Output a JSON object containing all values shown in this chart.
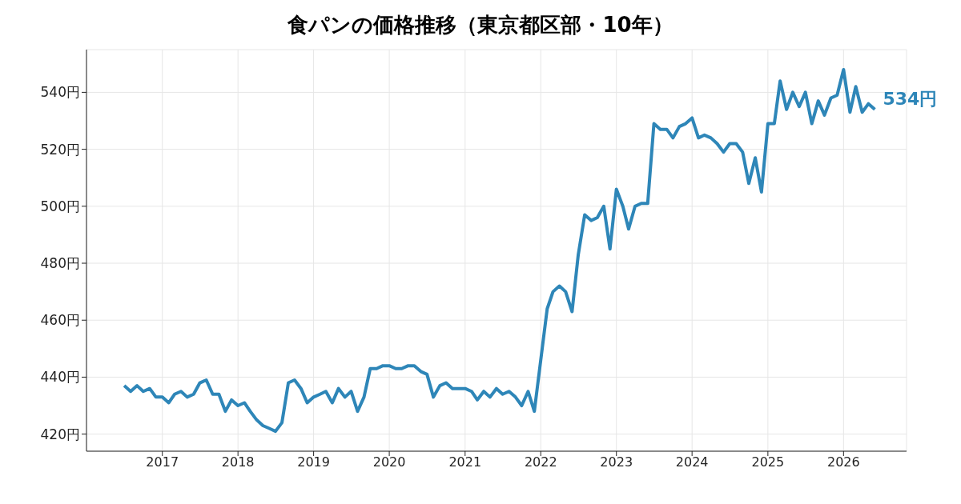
{
  "chart_data": {
    "type": "line",
    "title": "食パンの価格推移（東京都区部・10年）",
    "x": [
      "2016-07",
      "2016-08",
      "2016-09",
      "2016-10",
      "2016-11",
      "2016-12",
      "2017-01",
      "2017-02",
      "2017-03",
      "2017-04",
      "2017-05",
      "2017-06",
      "2017-07",
      "2017-08",
      "2017-09",
      "2017-10",
      "2017-11",
      "2017-12",
      "2018-01",
      "2018-02",
      "2018-03",
      "2018-04",
      "2018-05",
      "2018-06",
      "2018-07",
      "2018-08",
      "2018-09",
      "2018-10",
      "2018-11",
      "2018-12",
      "2019-01",
      "2019-02",
      "2019-03",
      "2019-04",
      "2019-05",
      "2019-06",
      "2019-07",
      "2019-08",
      "2019-09",
      "2019-10",
      "2019-11",
      "2019-12",
      "2020-01",
      "2020-02",
      "2020-03",
      "2020-04",
      "2020-05",
      "2020-06",
      "2020-07",
      "2020-08",
      "2020-09",
      "2020-10",
      "2020-11",
      "2020-12",
      "2021-01",
      "2021-02",
      "2021-03",
      "2021-04",
      "2021-05",
      "2021-06",
      "2021-07",
      "2021-08",
      "2021-09",
      "2021-10",
      "2021-11",
      "2021-12",
      "2022-01",
      "2022-02",
      "2022-03",
      "2022-04",
      "2022-05",
      "2022-06",
      "2022-07",
      "2022-08",
      "2022-09",
      "2022-10",
      "2022-11",
      "2022-12",
      "2023-01",
      "2023-02",
      "2023-03",
      "2023-04",
      "2023-05",
      "2023-06",
      "2023-07",
      "2023-08",
      "2023-09",
      "2023-10",
      "2023-11",
      "2023-12",
      "2024-01",
      "2024-02",
      "2024-03",
      "2024-04",
      "2024-05",
      "2024-06",
      "2024-07",
      "2024-08",
      "2024-09",
      "2024-10",
      "2024-11",
      "2024-12",
      "2025-01",
      "2025-02",
      "2025-03",
      "2025-04",
      "2025-05",
      "2025-06",
      "2025-07",
      "2025-08",
      "2025-09",
      "2025-10",
      "2025-11",
      "2025-12",
      "2026-01",
      "2026-02",
      "2026-03",
      "2026-04",
      "2026-05",
      "2026-06"
    ],
    "series": [
      {
        "color": "#2e86b8",
        "values": [
          437,
          435,
          437,
          435,
          436,
          433,
          433,
          431,
          434,
          435,
          433,
          434,
          438,
          439,
          434,
          434,
          428,
          432,
          430,
          431,
          428,
          425,
          423,
          422,
          421,
          424,
          438,
          439,
          436,
          431,
          433,
          434,
          435,
          431,
          436,
          433,
          435,
          428,
          433,
          443,
          443,
          444,
          444,
          443,
          443,
          444,
          444,
          442,
          441,
          433,
          437,
          438,
          436,
          436,
          436,
          435,
          432,
          435,
          433,
          436,
          434,
          435,
          433,
          430,
          435,
          428,
          446,
          464,
          470,
          472,
          470,
          463,
          483,
          497,
          495,
          496,
          500,
          485,
          506,
          500,
          492,
          500,
          501,
          501,
          529,
          527,
          527,
          524,
          528,
          529,
          531,
          524,
          525,
          524,
          522,
          519,
          522,
          522,
          519,
          508,
          517,
          505,
          529,
          529,
          544,
          534,
          540,
          535,
          540,
          529,
          537,
          532,
          538,
          539,
          548,
          533,
          542,
          533,
          536,
          534
        ]
      }
    ],
    "annotations": [
      {
        "text": "534円",
        "x": "2026-06",
        "y": 534
      }
    ],
    "xlim": [
      "2016-01",
      "2026-11"
    ],
    "xticks": [
      {
        "value": "2017",
        "label": "2017"
      },
      {
        "value": "2018",
        "label": "2018"
      },
      {
        "value": "2019",
        "label": "2019"
      },
      {
        "value": "2020",
        "label": "2020"
      },
      {
        "value": "2021",
        "label": "2021"
      },
      {
        "value": "2022",
        "label": "2022"
      },
      {
        "value": "2023",
        "label": "2023"
      },
      {
        "value": "2024",
        "label": "2024"
      },
      {
        "value": "2025",
        "label": "2025"
      },
      {
        "value": "2026",
        "label": "2026"
      }
    ],
    "ylim": [
      414,
      555
    ],
    "yticks": [
      {
        "value": 420,
        "label": "420円"
      },
      {
        "value": 440,
        "label": "440円"
      },
      {
        "value": 460,
        "label": "460円"
      },
      {
        "value": 480,
        "label": "480円"
      },
      {
        "value": 500,
        "label": "500円"
      },
      {
        "value": 520,
        "label": "520円"
      },
      {
        "value": 540,
        "label": "540円"
      }
    ],
    "grid": true,
    "marker": "none",
    "line_style": "solid"
  }
}
